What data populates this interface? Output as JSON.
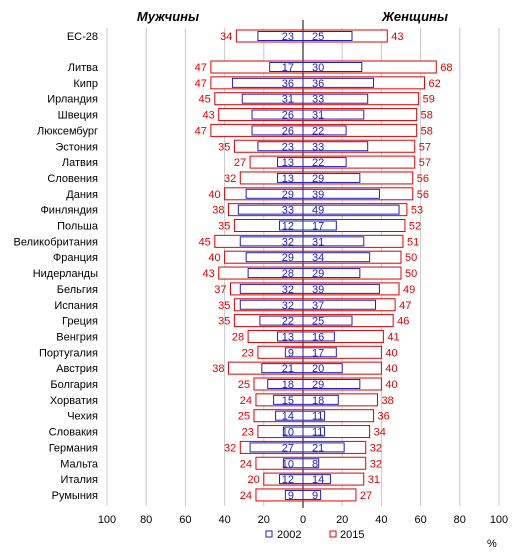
{
  "chart_data": {
    "type": "bar",
    "title": "",
    "header_left": "Мужчины",
    "header_right": "Женщины",
    "unit_label": "%",
    "xlim": [
      -100,
      100
    ],
    "x_ticks": [
      "100",
      "80",
      "60",
      "40",
      "20",
      "0",
      "20",
      "40",
      "60",
      "80",
      "100"
    ],
    "legend": [
      {
        "name": "2002",
        "color": "#1f1fbf"
      },
      {
        "name": "2015",
        "color": "#e00000"
      }
    ],
    "series_colors": {
      "y2002": "#1f1fbf",
      "y2015": "#e00000"
    },
    "rows": [
      {
        "country": "ЕС-28",
        "men_2002": 23,
        "men_2015": 34,
        "women_2002": 25,
        "women_2015": 43
      },
      {
        "country": "Литва",
        "men_2002": 17,
        "men_2015": 47,
        "women_2002": 30,
        "women_2015": 68
      },
      {
        "country": "Кипр",
        "men_2002": 36,
        "men_2015": 47,
        "women_2002": 36,
        "women_2015": 62
      },
      {
        "country": "Ирландия",
        "men_2002": 31,
        "men_2015": 45,
        "women_2002": 33,
        "women_2015": 59
      },
      {
        "country": "Швеция",
        "men_2002": 26,
        "men_2015": 43,
        "women_2002": 31,
        "women_2015": 58
      },
      {
        "country": "Люксембург",
        "men_2002": 26,
        "men_2015": 47,
        "women_2002": 22,
        "women_2015": 58
      },
      {
        "country": "Эстония",
        "men_2002": 23,
        "men_2015": 35,
        "women_2002": 33,
        "women_2015": 57
      },
      {
        "country": "Латвия",
        "men_2002": 13,
        "men_2015": 27,
        "women_2002": 22,
        "women_2015": 57
      },
      {
        "country": "Словения",
        "men_2002": 13,
        "men_2015": 32,
        "women_2002": 29,
        "women_2015": 56
      },
      {
        "country": "Дания",
        "men_2002": 29,
        "men_2015": 40,
        "women_2002": 39,
        "women_2015": 56
      },
      {
        "country": "Финляндия",
        "men_2002": 33,
        "men_2015": 38,
        "women_2002": 49,
        "women_2015": 53
      },
      {
        "country": "Польша",
        "men_2002": 12,
        "men_2015": 35,
        "women_2002": 17,
        "women_2015": 52
      },
      {
        "country": "Великобритания",
        "men_2002": 32,
        "men_2015": 45,
        "women_2002": 31,
        "women_2015": 51
      },
      {
        "country": "Франция",
        "men_2002": 29,
        "men_2015": 40,
        "women_2002": 34,
        "women_2015": 50
      },
      {
        "country": "Нидерланды",
        "men_2002": 28,
        "men_2015": 43,
        "women_2002": 29,
        "women_2015": 50
      },
      {
        "country": "Бельгия",
        "men_2002": 32,
        "men_2015": 37,
        "women_2002": 39,
        "women_2015": 49
      },
      {
        "country": "Испания",
        "men_2002": 32,
        "men_2015": 35,
        "women_2002": 37,
        "women_2015": 47
      },
      {
        "country": "Греция",
        "men_2002": 22,
        "men_2015": 35,
        "women_2002": 25,
        "women_2015": 46
      },
      {
        "country": "Венгрия",
        "men_2002": 13,
        "men_2015": 28,
        "women_2002": 16,
        "women_2015": 41
      },
      {
        "country": "Португалия",
        "men_2002": 9,
        "men_2015": 23,
        "women_2002": 17,
        "women_2015": 40
      },
      {
        "country": "Австрия",
        "men_2002": 21,
        "men_2015": 38,
        "women_2002": 20,
        "women_2015": 40
      },
      {
        "country": "Болгария",
        "men_2002": 18,
        "men_2015": 25,
        "women_2002": 29,
        "women_2015": 40
      },
      {
        "country": "Хорватия",
        "men_2002": 15,
        "men_2015": 24,
        "women_2002": 18,
        "women_2015": 38
      },
      {
        "country": "Чехия",
        "men_2002": 14,
        "men_2015": 25,
        "women_2002": 11,
        "women_2015": 36
      },
      {
        "country": "Словакия",
        "men_2002": 10,
        "men_2015": 23,
        "women_2002": 11,
        "women_2015": 34
      },
      {
        "country": "Германия",
        "men_2002": 27,
        "men_2015": 32,
        "women_2002": 21,
        "women_2015": 32
      },
      {
        "country": "Мальта",
        "men_2002": 10,
        "men_2015": 24,
        "women_2002": 8,
        "women_2015": 32
      },
      {
        "country": "Италия",
        "men_2002": 12,
        "men_2015": 20,
        "women_2002": 14,
        "women_2015": 31
      },
      {
        "country": "Румыния",
        "men_2002": 9,
        "men_2015": 24,
        "women_2002": 9,
        "women_2015": 27
      }
    ]
  }
}
